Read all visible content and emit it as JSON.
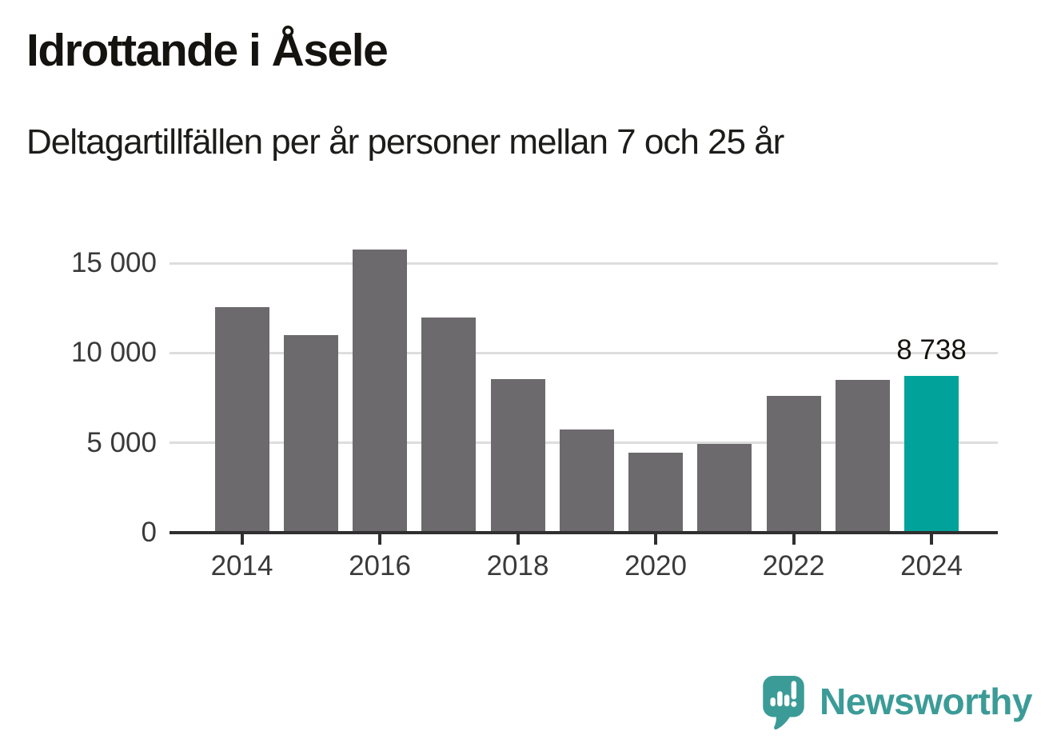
{
  "header": {
    "title": "Idrottande i Åsele",
    "subtitle": "Deltagartillfällen per år personer mellan 7 och 25 år"
  },
  "chart_data": {
    "type": "bar",
    "title": "Idrottande i Åsele",
    "subtitle": "Deltagartillfällen per år personer mellan 7 och 25 år",
    "categories": [
      "2014",
      "2015",
      "2016",
      "2017",
      "2018",
      "2019",
      "2020",
      "2021",
      "2022",
      "2023",
      "2024"
    ],
    "values": [
      12550,
      11000,
      15750,
      12000,
      8550,
      5750,
      4450,
      4950,
      7600,
      8500,
      8738
    ],
    "xtick_labels": [
      "2014",
      "2016",
      "2018",
      "2020",
      "2022",
      "2024"
    ],
    "yticks": [
      {
        "value": 0,
        "label": "0"
      },
      {
        "value": 5000,
        "label": "5 000"
      },
      {
        "value": 10000,
        "label": "10 000"
      },
      {
        "value": 15000,
        "label": "15 000"
      }
    ],
    "ylim": [
      0,
      16300
    ],
    "xlabel": "",
    "ylabel": "",
    "grid": "horizontal-only",
    "legend": "none",
    "bar_color": "#6d6a6d",
    "highlight": {
      "category": "2024",
      "color": "#00a299"
    },
    "value_label": {
      "category": "2024",
      "text": "8 738"
    },
    "gridline_color": "#dddddd",
    "axis_color": "#2f2f2f",
    "tick_label_color": "#3a3a3a"
  },
  "footer": {
    "brand": "Newsworthy",
    "brand_color": "#3b9b97",
    "logo_icon": "speech-bubble-bar-chart-exclamation"
  }
}
